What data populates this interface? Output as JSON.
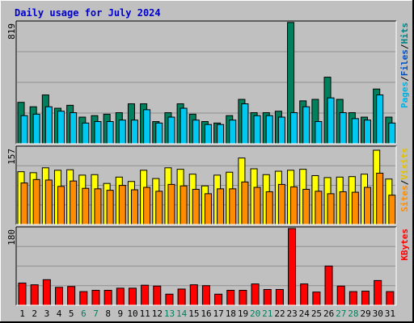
{
  "chart_data": {
    "type": "bar",
    "title": "Daily usage for July 2024",
    "categories": [
      "1",
      "2",
      "3",
      "4",
      "5",
      "6",
      "7",
      "8",
      "9",
      "10",
      "11",
      "12",
      "13",
      "14",
      "15",
      "16",
      "17",
      "18",
      "19",
      "20",
      "21",
      "22",
      "23",
      "24",
      "25",
      "26",
      "27",
      "28",
      "29",
      "30",
      "31"
    ],
    "weekend_days": [
      "6",
      "7",
      "13",
      "14",
      "20",
      "21",
      "27",
      "28"
    ],
    "colors": {
      "title": "#0000cc",
      "hits": "#00805c",
      "files": "#00c8f0",
      "pages": "#00b0e0",
      "visits": "#ffff00",
      "sites": "#ff8c00",
      "kbytes": "#ff0000",
      "weekday_label": "#000000",
      "weekend_label": "#00805c",
      "plot_background": "#c0c0c0"
    },
    "panels": [
      {
        "id": "hits",
        "ymax_label": "819",
        "ylim": [
          0,
          819
        ],
        "right_label": [
          "Pages",
          "/",
          "Files",
          "/",
          "Hits"
        ],
        "right_label_colors": [
          "#00b0e0",
          "#000000",
          "#0050c0",
          "#000000",
          "#008080"
        ],
        "series": [
          {
            "name": "Hits",
            "values": [
              280,
              250,
              330,
              240,
              260,
              180,
              190,
              200,
              210,
              270,
              270,
              150,
              210,
              270,
              200,
              150,
              140,
              190,
              300,
              210,
              210,
              220,
              820,
              290,
              300,
              450,
              300,
              210,
              180,
              370,
              180
            ]
          },
          {
            "name": "Files",
            "values": [
              190,
              200,
              250,
              220,
              210,
              140,
              150,
              150,
              160,
              160,
              230,
              140,
              180,
              240,
              160,
              130,
              130,
              160,
              270,
              190,
              190,
              180,
              210,
              250,
              150,
              310,
              210,
              170,
              160,
              330,
              140
            ]
          }
        ]
      },
      {
        "id": "visits",
        "ymax_label": "157",
        "ylim": [
          0,
          157
        ],
        "right_label": [
          "Sites",
          "/",
          "Visits"
        ],
        "right_label_colors": [
          "#ff8c00",
          "#000000",
          "#e0c000"
        ],
        "series": [
          {
            "name": "Visits",
            "values": [
              108,
              106,
              116,
              111,
              112,
              101,
              102,
              84,
              97,
              88,
              111,
              94,
              116,
              113,
              103,
              79,
              101,
              107,
              136,
              114,
              102,
              109,
              111,
              113,
              100,
              96,
              97,
              98,
              103,
              152,
              93
            ]
          },
          {
            "name": "Sites",
            "values": [
              85,
              92,
              91,
              78,
              89,
              74,
              73,
              70,
              80,
              71,
              76,
              68,
              82,
              79,
              72,
              63,
              73,
              73,
              87,
              76,
              67,
              82,
              77,
              72,
              68,
              63,
              67,
              66,
              76,
              105,
              60
            ]
          }
        ]
      },
      {
        "id": "kbytes",
        "ymax_label": "180",
        "ylim": [
          0,
          180
        ],
        "right_label": [
          "KBytes"
        ],
        "right_label_colors": [
          "#ff0000"
        ],
        "series": [
          {
            "name": "KBytes",
            "values": [
              52,
              48,
              60,
              42,
              44,
              32,
              35,
              35,
              40,
              40,
              47,
              45,
              26,
              38,
              48,
              46,
              26,
              35,
              35,
              50,
              37,
              37,
              180,
              50,
              31,
              92,
              45,
              32,
              33,
              58,
              32
            ]
          }
        ]
      }
    ]
  }
}
